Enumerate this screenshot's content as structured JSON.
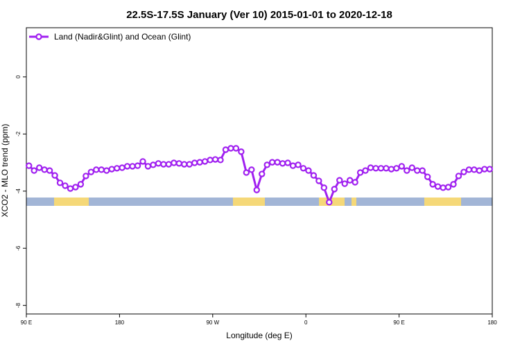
{
  "chart_data": {
    "type": "line",
    "title": "22.5S-17.5S January (Ver 10)   2015-01-01 to 2020-12-18",
    "xlabel": "Longitude (deg E)",
    "ylabel": "XCO2 - MLO trend (ppm)",
    "x": [
      92.5,
      97.5,
      102.5,
      107.5,
      112.5,
      117.5,
      122.5,
      127.5,
      132.5,
      137.5,
      142.5,
      147.5,
      152.5,
      157.5,
      162.5,
      167.5,
      172.5,
      177.5,
      182.5,
      187.5,
      192.5,
      197.5,
      202.5,
      207.5,
      212.5,
      217.5,
      222.5,
      227.5,
      232.5,
      237.5,
      242.5,
      247.5,
      252.5,
      257.5,
      262.5,
      267.5,
      272.5,
      277.5,
      282.5,
      287.5,
      292.5,
      297.5,
      302.5,
      307.5,
      312.5,
      317.5,
      322.5,
      327.5,
      332.5,
      337.5,
      342.5,
      347.5,
      352.5,
      357.5,
      362.5,
      367.5,
      372.5,
      377.5,
      382.5,
      387.5,
      392.5,
      397.5,
      402.5,
      407.5,
      412.5,
      417.5,
      422.5,
      427.5,
      432.5,
      437.5,
      442.5,
      447.5,
      452.5,
      457.5,
      462.5,
      467.5,
      472.5,
      477.5,
      482.5,
      487.5,
      492.5,
      497.5,
      502.5,
      507.5,
      512.5,
      517.5,
      522.5,
      527.5,
      532.5,
      537.5
    ],
    "series": [
      {
        "name": "Land (Nadir&Glint) and Ocean (Glint)",
        "color": "#a020f0",
        "values": [
          -3.11,
          -3.28,
          -3.18,
          -3.25,
          -3.28,
          -3.45,
          -3.71,
          -3.81,
          -3.91,
          -3.86,
          -3.76,
          -3.47,
          -3.33,
          -3.25,
          -3.25,
          -3.28,
          -3.23,
          -3.2,
          -3.18,
          -3.13,
          -3.13,
          -3.11,
          -2.96,
          -3.13,
          -3.08,
          -3.03,
          -3.06,
          -3.06,
          -3.01,
          -3.03,
          -3.06,
          -3.06,
          -3.01,
          -2.99,
          -2.96,
          -2.91,
          -2.89,
          -2.91,
          -2.55,
          -2.5,
          -2.5,
          -2.62,
          -3.35,
          -3.25,
          -3.96,
          -3.4,
          -3.08,
          -2.99,
          -2.99,
          -3.03,
          -3.01,
          -3.11,
          -3.08,
          -3.2,
          -3.28,
          -3.45,
          -3.64,
          -3.88,
          -4.39,
          -3.93,
          -3.62,
          -3.74,
          -3.62,
          -3.69,
          -3.35,
          -3.28,
          -3.18,
          -3.2,
          -3.2,
          -3.2,
          -3.23,
          -3.2,
          -3.13,
          -3.28,
          -3.18,
          -3.28,
          -3.28,
          -3.5,
          -3.76,
          -3.84,
          -3.88,
          -3.86,
          -3.76,
          -3.47,
          -3.33,
          -3.25,
          -3.25,
          -3.28,
          -3.23,
          -3.23
        ]
      }
    ],
    "xlim": [
      90,
      540
    ],
    "xticks": [
      {
        "value": 90,
        "label": "90 E"
      },
      180,
      {
        "value": 270,
        "label": "90 W"
      },
      {
        "value": 360,
        "label": "0"
      },
      {
        "value": 450,
        "label": "90 E"
      },
      {
        "value": 540,
        "label": "180"
      }
    ],
    "ylim": [
      -8.3,
      1.72
    ],
    "yticks": [
      0,
      -2,
      -4,
      -6,
      -8
    ],
    "legend": "top-left"
  }
}
